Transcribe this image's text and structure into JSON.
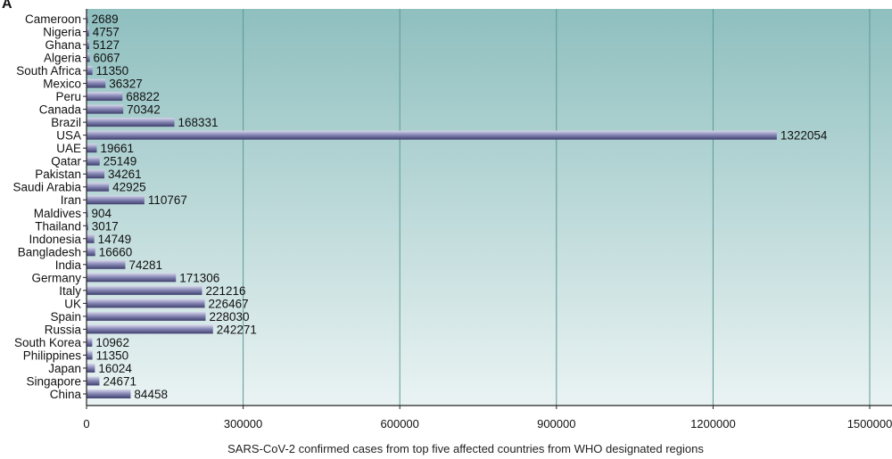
{
  "panel_label": "A",
  "chart_data": {
    "type": "bar",
    "orientation": "horizontal",
    "categories": [
      "Cameroon",
      "Nigeria",
      "Ghana",
      "Algeria",
      "South Africa",
      "Mexico",
      "Peru",
      "Canada",
      "Brazil",
      "USA",
      "UAE",
      "Qatar",
      "Pakistan",
      "Saudi Arabia",
      "Iran",
      "Maldives",
      "Thailand",
      "Indonesia",
      "Bangladesh",
      "India",
      "Germany",
      "Italy",
      "UK",
      "Spain",
      "Russia",
      "South Korea",
      "Philippines",
      "Japan",
      "Singapore",
      "China"
    ],
    "values": [
      2689,
      4757,
      5127,
      6067,
      11350,
      36327,
      68822,
      70342,
      168331,
      1322054,
      19661,
      25149,
      34261,
      42925,
      110767,
      904,
      3017,
      14749,
      16660,
      74281,
      171306,
      221216,
      226467,
      228030,
      242271,
      10962,
      11350,
      16024,
      24671,
      84458
    ],
    "value_labels": [
      "2689",
      "4757",
      "5127",
      "6067",
      "11350",
      "36327",
      "68822",
      "70342",
      "168331",
      "1322054",
      "19661",
      "25149",
      "34261",
      "42925",
      "110767",
      "904",
      "3017",
      "14749",
      "16660",
      "74281",
      "171306",
      "221216",
      "226467",
      "228030",
      "242271",
      "10962",
      "11350",
      "16024",
      "24671",
      "84458"
    ],
    "xlabel": "SARS-CoV-2 confirmed cases from top five affected countries from WHO designated regions",
    "ylabel": "",
    "title": "",
    "xlim": [
      0,
      1500000
    ],
    "xticks": [
      0,
      300000,
      600000,
      900000,
      1200000,
      1500000
    ],
    "xtick_labels": [
      "0",
      "300000",
      "600000",
      "900000",
      "1200000",
      "1500000"
    ],
    "grid": "vertical",
    "colors": {
      "background_top": "#8fbfbf",
      "background_bottom": "#eaf3f3",
      "bar_light": "#d9d9ec",
      "bar_mid": "#8a8ab8",
      "bar_dark": "#3f3f6e",
      "grid": "#5a9a95"
    }
  }
}
